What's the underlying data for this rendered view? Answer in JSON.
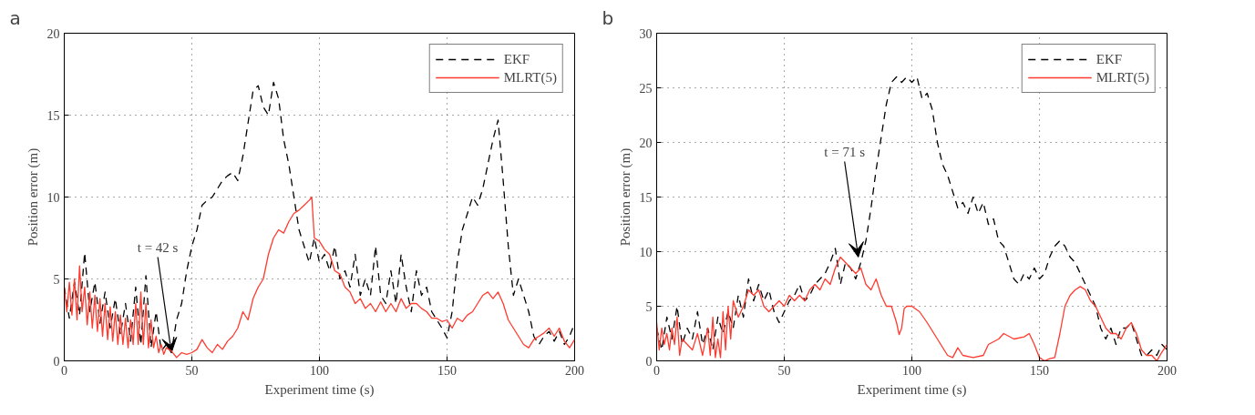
{
  "chart_data": [
    {
      "type": "line",
      "title": "a",
      "xlabel": "Experiment time (s)",
      "ylabel": "Position error (m)",
      "xlim": [
        0,
        200
      ],
      "ylim": [
        0,
        20
      ],
      "xticks": [
        0,
        50,
        100,
        150,
        200
      ],
      "yticks": [
        0,
        5,
        10,
        15,
        20
      ],
      "grid": true,
      "legend": "top right",
      "annotations": [
        {
          "text": "t = 42 s",
          "x": 42,
          "y": 0.5
        }
      ],
      "series": [
        {
          "name": "EKF",
          "color": "#000000",
          "line_style": "dashed",
          "x": [
            0,
            2,
            4,
            6,
            8,
            10,
            12,
            14,
            16,
            18,
            20,
            22,
            24,
            26,
            28,
            30,
            32,
            34,
            36,
            38,
            40,
            42,
            44,
            46,
            48,
            50,
            52,
            54,
            56,
            58,
            60,
            62,
            64,
            66,
            68,
            70,
            72,
            74,
            76,
            78,
            80,
            82,
            84,
            86,
            88,
            90,
            92,
            94,
            96,
            98,
            100,
            102,
            104,
            106,
            108,
            110,
            112,
            114,
            116,
            118,
            120,
            122,
            124,
            126,
            128,
            130,
            132,
            134,
            136,
            138,
            140,
            142,
            144,
            146,
            148,
            150,
            152,
            154,
            156,
            158,
            160,
            162,
            164,
            166,
            168,
            170,
            172,
            174,
            176,
            178,
            180,
            182,
            184,
            186,
            188,
            190,
            192,
            194,
            196,
            198,
            200
          ],
          "values": [
            4.5,
            2.6,
            4.8,
            2.8,
            6.6,
            3.0,
            4.8,
            2.3,
            4.2,
            2.0,
            3.8,
            1.6,
            3.5,
            1.2,
            4.5,
            1.0,
            5.2,
            0.8,
            3.0,
            0.6,
            1.0,
            0.5,
            2.5,
            3.5,
            5.5,
            7.0,
            8.0,
            9.5,
            9.8,
            10.0,
            10.5,
            11.0,
            11.3,
            11.5,
            11.0,
            12.5,
            14.5,
            16.5,
            16.8,
            15.5,
            15.0,
            17.0,
            16.0,
            13.5,
            12.0,
            10.0,
            8.0,
            7.0,
            6.0,
            7.5,
            6.0,
            6.5,
            5.5,
            7.0,
            5.0,
            5.5,
            4.5,
            6.5,
            4.0,
            5.0,
            4.0,
            7.0,
            4.0,
            3.5,
            5.5,
            3.5,
            6.5,
            4.5,
            3.0,
            5.5,
            4.0,
            4.5,
            3.0,
            2.5,
            2.0,
            1.4,
            3.0,
            6.0,
            8.0,
            9.0,
            10.0,
            9.5,
            10.5,
            12.0,
            13.5,
            14.7,
            11.0,
            7.0,
            4.0,
            5.0,
            4.0,
            3.0,
            1.5,
            1.0,
            1.5,
            1.8,
            1.2,
            1.8,
            1.0,
            1.5,
            2.3
          ]
        },
        {
          "name": "MLRT(5)",
          "color": "#ff3b2f",
          "line_style": "solid",
          "x": [
            0,
            1,
            2,
            3,
            4,
            5,
            6,
            7,
            8,
            9,
            10,
            11,
            12,
            13,
            14,
            15,
            16,
            17,
            18,
            19,
            20,
            21,
            22,
            23,
            24,
            25,
            26,
            27,
            28,
            29,
            30,
            31,
            32,
            33,
            34,
            35,
            36,
            37,
            38,
            39,
            40,
            42,
            44,
            46,
            48,
            50,
            52,
            54,
            56,
            58,
            60,
            62,
            64,
            66,
            68,
            70,
            72,
            74,
            76,
            78,
            80,
            82,
            84,
            86,
            88,
            90,
            92,
            94,
            96,
            97,
            98,
            100,
            102,
            104,
            106,
            108,
            110,
            112,
            114,
            116,
            118,
            120,
            122,
            124,
            126,
            128,
            130,
            132,
            134,
            136,
            138,
            140,
            142,
            144,
            146,
            148,
            150,
            152,
            154,
            156,
            158,
            160,
            162,
            164,
            166,
            168,
            170,
            172,
            174,
            176,
            178,
            180,
            182,
            184,
            186,
            188,
            190,
            192,
            194,
            196,
            198,
            200
          ],
          "values": [
            4.5,
            3,
            4.8,
            2.8,
            5,
            2.5,
            5.8,
            3,
            4.5,
            2.2,
            4.2,
            2,
            4,
            1.8,
            3.8,
            1.5,
            3.5,
            1.3,
            3.3,
            1.2,
            3,
            1,
            2.8,
            1,
            2.6,
            0.8,
            2.5,
            1,
            3.5,
            1,
            4.2,
            1,
            3.5,
            0.8,
            2.5,
            0.8,
            1.5,
            0.5,
            1,
            0.4,
            0.8,
            0.6,
            0.2,
            0.5,
            0.4,
            0.5,
            0.7,
            1.3,
            0.8,
            0.5,
            1.0,
            0.7,
            1.2,
            1.5,
            2.0,
            3.0,
            2.5,
            3.8,
            4.5,
            5.0,
            6.5,
            7.5,
            8.0,
            7.8,
            8.5,
            9.0,
            9.2,
            9.5,
            9.8,
            10.0,
            7.5,
            7.3,
            6.8,
            6.5,
            5.5,
            5.3,
            4.5,
            4.2,
            3.5,
            3.8,
            3.2,
            3.5,
            3.0,
            3.6,
            3.0,
            3.5,
            3.0,
            3.8,
            3.2,
            3.5,
            3.5,
            3.2,
            3.0,
            2.6,
            2.6,
            2.4,
            2.5,
            2.0,
            2.6,
            2.4,
            2.8,
            3.0,
            3.5,
            4.0,
            4.2,
            3.8,
            4.2,
            3.5,
            2.5,
            2.0,
            1.5,
            1.0,
            0.8,
            1.3,
            1.5,
            1.7,
            2.0,
            1.5,
            2.0,
            1.2,
            0.8,
            1.3
          ]
        }
      ]
    },
    {
      "type": "line",
      "title": "b",
      "xlabel": "Experiment time (s)",
      "ylabel": "Position error (m)",
      "xlim": [
        0,
        200
      ],
      "ylim": [
        0,
        30
      ],
      "xticks": [
        0,
        50,
        100,
        150,
        200
      ],
      "yticks": [
        0,
        5,
        10,
        15,
        20,
        25,
        30
      ],
      "grid": true,
      "legend": "top right",
      "annotations": [
        {
          "text": "t = 71 s",
          "x": 79,
          "y": 9.5
        }
      ],
      "series": [
        {
          "name": "EKF",
          "color": "#000000",
          "line_style": "dashed",
          "x": [
            0,
            2,
            4,
            6,
            8,
            10,
            12,
            14,
            16,
            18,
            20,
            22,
            24,
            26,
            28,
            30,
            32,
            34,
            36,
            38,
            40,
            42,
            44,
            46,
            48,
            50,
            52,
            54,
            56,
            58,
            60,
            62,
            64,
            66,
            68,
            70,
            72,
            74,
            76,
            78,
            80,
            82,
            84,
            86,
            88,
            90,
            92,
            94,
            96,
            98,
            100,
            102,
            104,
            106,
            108,
            110,
            112,
            114,
            116,
            118,
            120,
            122,
            124,
            126,
            128,
            130,
            132,
            134,
            136,
            138,
            140,
            142,
            144,
            146,
            148,
            150,
            152,
            154,
            156,
            158,
            160,
            162,
            164,
            166,
            168,
            170,
            172,
            174,
            176,
            178,
            180,
            182,
            184,
            186,
            188,
            190,
            192,
            194,
            196,
            198,
            200
          ],
          "values": [
            3,
            1,
            4,
            2,
            5,
            1.5,
            3,
            2,
            4.5,
            1.5,
            3,
            1,
            4,
            2.5,
            4.5,
            3,
            6,
            4,
            7.5,
            5.5,
            7,
            5.5,
            6.5,
            4.5,
            3.5,
            4.5,
            5.5,
            6,
            7,
            5.5,
            6,
            7,
            7.5,
            8,
            9,
            10.3,
            7,
            9,
            8.5,
            7.5,
            9,
            11,
            14,
            17.5,
            20.5,
            23.5,
            25.5,
            26,
            25.5,
            26,
            25.5,
            26,
            24,
            24.5,
            23,
            20,
            18,
            17,
            15.5,
            14,
            14.5,
            13.5,
            15,
            13.5,
            14.5,
            12.5,
            13,
            11,
            10.5,
            9,
            7.5,
            7,
            8,
            7.5,
            8.5,
            7.5,
            8,
            9.5,
            10.5,
            11,
            10.5,
            9.5,
            9,
            8,
            7,
            6,
            5,
            3,
            2,
            3,
            1.5,
            3,
            3,
            3.5,
            2,
            0.5,
            0.5,
            1,
            0.5,
            1.5,
            1
          ]
        },
        {
          "name": "MLRT(5)",
          "color": "#ff3b2f",
          "line_style": "solid",
          "x": [
            0,
            1,
            2,
            3,
            4,
            5,
            6,
            7,
            8,
            9,
            10,
            12,
            14,
            16,
            18,
            20,
            21,
            22,
            23,
            24,
            25,
            26,
            27,
            28,
            29,
            30,
            32,
            34,
            36,
            38,
            40,
            42,
            44,
            46,
            48,
            50,
            52,
            54,
            56,
            58,
            60,
            62,
            64,
            66,
            68,
            70,
            72,
            74,
            76,
            78,
            80,
            82,
            84,
            86,
            88,
            90,
            92,
            94,
            95,
            96,
            97,
            98,
            100,
            103,
            106,
            110,
            114,
            116,
            118,
            120,
            124,
            128,
            130,
            134,
            136,
            140,
            144,
            146,
            148,
            150,
            152,
            154,
            156,
            158,
            160,
            162,
            164,
            166,
            168,
            170,
            172,
            174,
            176,
            178,
            180,
            182,
            184,
            186,
            188,
            190,
            192,
            194,
            196,
            198,
            200
          ],
          "values": [
            3.5,
            1,
            3,
            1.5,
            2.5,
            1,
            3,
            1.5,
            4,
            0.5,
            2,
            1.5,
            1,
            2.5,
            0.5,
            3,
            0.5,
            4,
            0.3,
            2,
            0.3,
            4.5,
            1,
            5,
            2,
            5.5,
            4,
            5,
            6.5,
            6,
            6.5,
            5,
            4.5,
            5,
            5.5,
            5,
            6,
            5.5,
            6,
            5.5,
            6.5,
            7,
            6.5,
            7.5,
            7,
            8.5,
            9.5,
            9,
            8.5,
            8,
            8.5,
            7,
            6.5,
            7.5,
            6,
            5,
            5,
            3.5,
            2.4,
            3,
            4.8,
            5,
            5,
            4.5,
            3.5,
            2,
            0.5,
            0.3,
            1.2,
            0.5,
            0.3,
            0.5,
            1.5,
            2,
            2.5,
            2,
            2.2,
            2.5,
            1.5,
            0.3,
            0,
            0.2,
            0.3,
            2.5,
            5,
            6,
            6.5,
            6.8,
            6.5,
            5.5,
            5,
            4,
            3,
            2.5,
            2.5,
            2,
            3,
            3.5,
            2.5,
            1,
            0.5,
            0.5,
            0,
            0.8,
            1.5
          ]
        }
      ]
    }
  ]
}
